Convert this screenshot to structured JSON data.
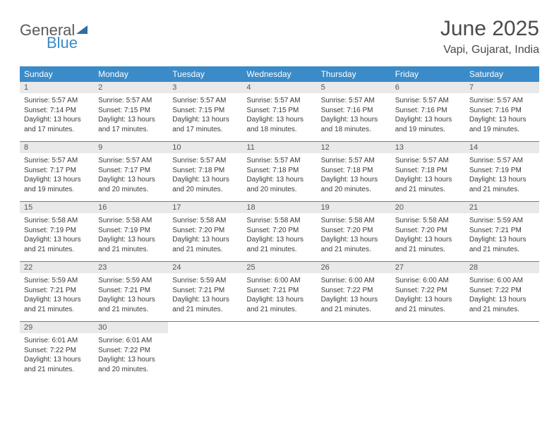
{
  "logo": {
    "text1": "General",
    "text2": "Blue"
  },
  "title": "June 2025",
  "location": "Vapi, Gujarat, India",
  "colors": {
    "header_bg": "#3b8bc9",
    "header_text": "#ffffff",
    "daynum_bg": "#e9e9e9",
    "row_border": "#3b8bc9",
    "body_text": "#3a3a3a",
    "logo_blue": "#3b8bc9",
    "logo_gray": "#5a5a5a"
  },
  "weekdays": [
    "Sunday",
    "Monday",
    "Tuesday",
    "Wednesday",
    "Thursday",
    "Friday",
    "Saturday"
  ],
  "weeks": [
    [
      {
        "n": "1",
        "sr": "5:57 AM",
        "ss": "7:14 PM",
        "dl": "13 hours and 17 minutes."
      },
      {
        "n": "2",
        "sr": "5:57 AM",
        "ss": "7:15 PM",
        "dl": "13 hours and 17 minutes."
      },
      {
        "n": "3",
        "sr": "5:57 AM",
        "ss": "7:15 PM",
        "dl": "13 hours and 17 minutes."
      },
      {
        "n": "4",
        "sr": "5:57 AM",
        "ss": "7:15 PM",
        "dl": "13 hours and 18 minutes."
      },
      {
        "n": "5",
        "sr": "5:57 AM",
        "ss": "7:16 PM",
        "dl": "13 hours and 18 minutes."
      },
      {
        "n": "6",
        "sr": "5:57 AM",
        "ss": "7:16 PM",
        "dl": "13 hours and 19 minutes."
      },
      {
        "n": "7",
        "sr": "5:57 AM",
        "ss": "7:16 PM",
        "dl": "13 hours and 19 minutes."
      }
    ],
    [
      {
        "n": "8",
        "sr": "5:57 AM",
        "ss": "7:17 PM",
        "dl": "13 hours and 19 minutes."
      },
      {
        "n": "9",
        "sr": "5:57 AM",
        "ss": "7:17 PM",
        "dl": "13 hours and 20 minutes."
      },
      {
        "n": "10",
        "sr": "5:57 AM",
        "ss": "7:18 PM",
        "dl": "13 hours and 20 minutes."
      },
      {
        "n": "11",
        "sr": "5:57 AM",
        "ss": "7:18 PM",
        "dl": "13 hours and 20 minutes."
      },
      {
        "n": "12",
        "sr": "5:57 AM",
        "ss": "7:18 PM",
        "dl": "13 hours and 20 minutes."
      },
      {
        "n": "13",
        "sr": "5:57 AM",
        "ss": "7:18 PM",
        "dl": "13 hours and 21 minutes."
      },
      {
        "n": "14",
        "sr": "5:57 AM",
        "ss": "7:19 PM",
        "dl": "13 hours and 21 minutes."
      }
    ],
    [
      {
        "n": "15",
        "sr": "5:58 AM",
        "ss": "7:19 PM",
        "dl": "13 hours and 21 minutes."
      },
      {
        "n": "16",
        "sr": "5:58 AM",
        "ss": "7:19 PM",
        "dl": "13 hours and 21 minutes."
      },
      {
        "n": "17",
        "sr": "5:58 AM",
        "ss": "7:20 PM",
        "dl": "13 hours and 21 minutes."
      },
      {
        "n": "18",
        "sr": "5:58 AM",
        "ss": "7:20 PM",
        "dl": "13 hours and 21 minutes."
      },
      {
        "n": "19",
        "sr": "5:58 AM",
        "ss": "7:20 PM",
        "dl": "13 hours and 21 minutes."
      },
      {
        "n": "20",
        "sr": "5:58 AM",
        "ss": "7:20 PM",
        "dl": "13 hours and 21 minutes."
      },
      {
        "n": "21",
        "sr": "5:59 AM",
        "ss": "7:21 PM",
        "dl": "13 hours and 21 minutes."
      }
    ],
    [
      {
        "n": "22",
        "sr": "5:59 AM",
        "ss": "7:21 PM",
        "dl": "13 hours and 21 minutes."
      },
      {
        "n": "23",
        "sr": "5:59 AM",
        "ss": "7:21 PM",
        "dl": "13 hours and 21 minutes."
      },
      {
        "n": "24",
        "sr": "5:59 AM",
        "ss": "7:21 PM",
        "dl": "13 hours and 21 minutes."
      },
      {
        "n": "25",
        "sr": "6:00 AM",
        "ss": "7:21 PM",
        "dl": "13 hours and 21 minutes."
      },
      {
        "n": "26",
        "sr": "6:00 AM",
        "ss": "7:22 PM",
        "dl": "13 hours and 21 minutes."
      },
      {
        "n": "27",
        "sr": "6:00 AM",
        "ss": "7:22 PM",
        "dl": "13 hours and 21 minutes."
      },
      {
        "n": "28",
        "sr": "6:00 AM",
        "ss": "7:22 PM",
        "dl": "13 hours and 21 minutes."
      }
    ],
    [
      {
        "n": "29",
        "sr": "6:01 AM",
        "ss": "7:22 PM",
        "dl": "13 hours and 21 minutes."
      },
      {
        "n": "30",
        "sr": "6:01 AM",
        "ss": "7:22 PM",
        "dl": "13 hours and 20 minutes."
      },
      null,
      null,
      null,
      null,
      null
    ]
  ],
  "labels": {
    "sunrise": "Sunrise:",
    "sunset": "Sunset:",
    "daylight": "Daylight:"
  }
}
